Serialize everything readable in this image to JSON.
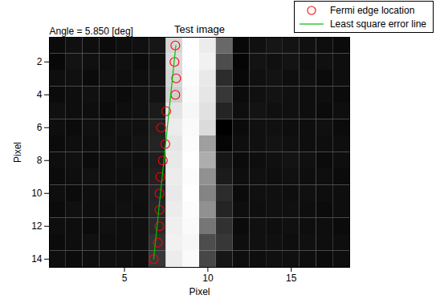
{
  "chart_data": {
    "type": "heatmap",
    "title": "Test image",
    "annotation": "Angle = 5.850 [deg]",
    "x_label": "Pixel",
    "y_label": "Pixel",
    "xlim": [
      0.5,
      18.5
    ],
    "ylim": [
      0.5,
      14.5
    ],
    "xticks": [
      5,
      10,
      15
    ],
    "yticks": [
      2,
      4,
      6,
      8,
      10,
      12,
      14
    ],
    "cells": [
      [
        0.06,
        0.08,
        0.07,
        0.06,
        0.07,
        0.08,
        0.1,
        0.8,
        0.95,
        0.88,
        0.4,
        0.05,
        0.08,
        0.1,
        0.09,
        0.08,
        0.07,
        0.06
      ],
      [
        0.05,
        0.09,
        0.08,
        0.07,
        0.08,
        0.06,
        0.08,
        0.82,
        0.95,
        0.9,
        0.3,
        0.04,
        0.09,
        0.08,
        0.09,
        0.07,
        0.08,
        0.07
      ],
      [
        0.07,
        0.08,
        0.06,
        0.08,
        0.07,
        0.07,
        0.09,
        0.8,
        0.94,
        0.87,
        0.18,
        0.05,
        0.08,
        0.09,
        0.07,
        0.08,
        0.06,
        0.07
      ],
      [
        0.06,
        0.07,
        0.08,
        0.07,
        0.06,
        0.08,
        0.09,
        0.78,
        0.93,
        0.86,
        0.22,
        0.06,
        0.08,
        0.09,
        0.08,
        0.07,
        0.07,
        0.06
      ],
      [
        0.08,
        0.07,
        0.07,
        0.06,
        0.07,
        0.08,
        0.12,
        0.85,
        0.92,
        0.84,
        0.15,
        0.07,
        0.09,
        0.08,
        0.08,
        0.07,
        0.06,
        0.07
      ],
      [
        0.07,
        0.06,
        0.08,
        0.07,
        0.08,
        0.08,
        0.14,
        0.88,
        0.93,
        0.82,
        0.02,
        0.06,
        0.08,
        0.08,
        0.07,
        0.07,
        0.08,
        0.06
      ],
      [
        0.06,
        0.07,
        0.07,
        0.08,
        0.07,
        0.09,
        0.15,
        0.86,
        0.94,
        0.6,
        0.04,
        0.07,
        0.08,
        0.09,
        0.08,
        0.07,
        0.07,
        0.07
      ],
      [
        0.07,
        0.08,
        0.06,
        0.07,
        0.08,
        0.07,
        0.13,
        0.87,
        0.95,
        0.65,
        0.1,
        0.06,
        0.07,
        0.08,
        0.09,
        0.08,
        0.06,
        0.07
      ],
      [
        0.06,
        0.07,
        0.08,
        0.07,
        0.07,
        0.08,
        0.14,
        0.88,
        0.94,
        0.55,
        0.12,
        0.07,
        0.08,
        0.07,
        0.08,
        0.07,
        0.07,
        0.06
      ],
      [
        0.07,
        0.06,
        0.07,
        0.08,
        0.07,
        0.08,
        0.15,
        0.87,
        0.95,
        0.5,
        0.18,
        0.06,
        0.08,
        0.08,
        0.07,
        0.08,
        0.07,
        0.07
      ],
      [
        0.06,
        0.08,
        0.07,
        0.07,
        0.08,
        0.07,
        0.16,
        0.88,
        0.94,
        0.55,
        0.15,
        0.07,
        0.07,
        0.08,
        0.08,
        0.07,
        0.06,
        0.07
      ],
      [
        0.07,
        0.07,
        0.06,
        0.08,
        0.07,
        0.08,
        0.17,
        0.89,
        0.93,
        0.45,
        0.2,
        0.06,
        0.08,
        0.07,
        0.08,
        0.07,
        0.07,
        0.06
      ],
      [
        0.06,
        0.07,
        0.08,
        0.07,
        0.07,
        0.08,
        0.2,
        0.9,
        0.92,
        0.3,
        0.22,
        0.07,
        0.08,
        0.08,
        0.07,
        0.08,
        0.07,
        0.07
      ],
      [
        0.07,
        0.06,
        0.07,
        0.08,
        0.08,
        0.07,
        0.22,
        0.88,
        0.93,
        0.28,
        0.1,
        0.07,
        0.07,
        0.08,
        0.08,
        0.07,
        0.06,
        0.07
      ]
    ],
    "series": [
      {
        "name": "Fermi edge location",
        "type": "scatter",
        "color": "#ff0000",
        "marker": "circle",
        "x": [
          8.05,
          8.0,
          8.1,
          8.05,
          7.5,
          7.2,
          7.45,
          7.3,
          7.15,
          7.1,
          7.1,
          7.1,
          7.0,
          6.75
        ],
        "y": [
          1,
          2,
          3,
          4,
          5,
          6,
          7,
          8,
          9,
          10,
          11,
          12,
          13,
          14
        ]
      },
      {
        "name": "Least square error line",
        "type": "line",
        "color": "#00c000",
        "line_style": "solid",
        "x": [
          8.08,
          6.75
        ],
        "y": [
          1,
          14
        ]
      }
    ],
    "legend": "top-right"
  }
}
